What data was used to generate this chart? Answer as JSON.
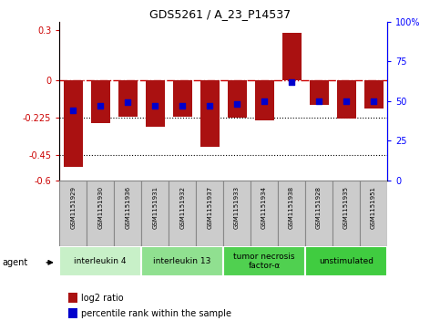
{
  "title": "GDS5261 / A_23_P14537",
  "samples": [
    "GSM1151929",
    "GSM1151930",
    "GSM1151936",
    "GSM1151931",
    "GSM1151932",
    "GSM1151937",
    "GSM1151933",
    "GSM1151934",
    "GSM1151938",
    "GSM1151928",
    "GSM1151935",
    "GSM1151951"
  ],
  "log2_ratio": [
    -0.52,
    -0.26,
    -0.22,
    -0.28,
    -0.22,
    -0.4,
    -0.225,
    -0.24,
    0.285,
    -0.15,
    -0.23,
    -0.17
  ],
  "percentile_rank": [
    44,
    47,
    49,
    47,
    47,
    47,
    48,
    50,
    62,
    50,
    50,
    50
  ],
  "groups": [
    {
      "label": "interleukin 4",
      "start": 0,
      "end": 3,
      "color": "#c8f0c8"
    },
    {
      "label": "interleukin 13",
      "start": 3,
      "end": 6,
      "color": "#90e090"
    },
    {
      "label": "tumor necrosis\nfactor-α",
      "start": 6,
      "end": 9,
      "color": "#50d050"
    },
    {
      "label": "unstimulated",
      "start": 9,
      "end": 12,
      "color": "#40cc40"
    }
  ],
  "ylim_left": [
    -0.6,
    0.35
  ],
  "ylim_right": [
    0,
    100
  ],
  "yticks_left": [
    -0.6,
    -0.45,
    -0.225,
    0,
    0.3
  ],
  "ytick_labels_left": [
    "-0.6",
    "-0.45",
    "-0.225",
    "0",
    "0.3"
  ],
  "yticks_right": [
    0,
    25,
    50,
    75,
    100
  ],
  "ytick_labels_right": [
    "0",
    "25",
    "50",
    "75",
    "100%"
  ],
  "bar_color": "#aa1111",
  "dot_color": "#0000cc",
  "bar_width": 0.7,
  "dot_size": 18,
  "agent_label": "agent",
  "legend_log2": "log2 ratio",
  "legend_pct": "percentile rank within the sample",
  "sample_box_color": "#cccccc",
  "sample_box_edge": "#888888"
}
